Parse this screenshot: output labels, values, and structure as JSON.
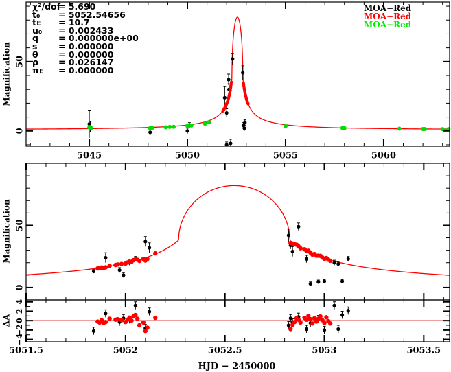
{
  "chart_data": [
    {
      "type": "scatter",
      "panel": "overview",
      "xlabel": "",
      "ylabel": "Magnification",
      "xlim": [
        5041.78,
        5063.36
      ],
      "ylim": [
        -11,
        93
      ],
      "xticks": [
        5045,
        5050,
        5055,
        5060
      ],
      "xtick_labels": [
        "5045",
        "5050",
        "5055",
        "5060"
      ],
      "yticks": [
        0,
        50
      ],
      "ytick_labels": [
        "0",
        "50"
      ],
      "model": {
        "t0": 5052.54656,
        "tE": 10.7,
        "u0": 0.002433,
        "rho": 0.026147,
        "color": "#ff0000"
      },
      "green_points": [
        [
          5045.0,
          2.5,
          1.5
        ],
        [
          5045.1,
          1.8,
          1.2
        ],
        [
          5048.1,
          2.0,
          0.8
        ],
        [
          5048.2,
          2.2,
          0.8
        ],
        [
          5048.9,
          2.6,
          0.8
        ],
        [
          5049.1,
          2.9,
          0.8
        ],
        [
          5049.3,
          3.0,
          0.8
        ],
        [
          5050.0,
          3.6,
          0.9
        ],
        [
          5050.2,
          3.9,
          0.9
        ],
        [
          5050.9,
          5.2,
          1.0
        ],
        [
          5051.1,
          6.2,
          1.0
        ],
        [
          5055.0,
          3.5,
          0.8
        ],
        [
          5057.9,
          2.1,
          0.8
        ],
        [
          5058.0,
          2.0,
          0.8
        ],
        [
          5060.8,
          1.6,
          0.8
        ],
        [
          5062.0,
          1.4,
          0.8
        ],
        [
          5062.1,
          1.4,
          0.8
        ],
        [
          5063.0,
          1.3,
          0.8
        ],
        [
          5063.3,
          1.3,
          0.8
        ]
      ],
      "black_points": [
        [
          5045.0,
          5,
          10
        ],
        [
          5045.05,
          3,
          4
        ],
        [
          5048.1,
          -1,
          2
        ],
        [
          5050.0,
          0,
          2
        ],
        [
          5050.1,
          4,
          2
        ],
        [
          5051.9,
          24,
          8
        ],
        [
          5052.0,
          13,
          3
        ],
        [
          5052.1,
          37,
          4
        ],
        [
          5052.12,
          30,
          4
        ],
        [
          5052.3,
          52,
          4
        ],
        [
          5052.82,
          42,
          5
        ],
        [
          5052.85,
          4,
          2
        ],
        [
          5052.9,
          2,
          2
        ],
        [
          5052.93,
          6,
          2
        ],
        [
          5052.0,
          -10,
          2
        ],
        [
          5052.2,
          -9,
          3
        ]
      ],
      "legend": [
        {
          "label": "MOA−Red",
          "color": "#000000"
        },
        {
          "label": "MOA−Red",
          "color": "#ff0000"
        },
        {
          "label": "MOA−Red",
          "color": "#00ee00"
        }
      ],
      "legend_position": "top-right",
      "params": [
        {
          "sym": "χ²/dof",
          "value": "= 5.690"
        },
        {
          "sym": "t₀",
          "value": "= 5052.54656"
        },
        {
          "sym": "tᴇ",
          "value": "= 10.7"
        },
        {
          "sym": "u₀",
          "value": "= 0.002433"
        },
        {
          "sym": "q",
          "value": "= 0.000000e+00"
        },
        {
          "sym": "s",
          "value": "= 0.000000"
        },
        {
          "sym": "θ",
          "value": "= 0.000000"
        },
        {
          "sym": "ρ",
          "value": "= 0.026147"
        },
        {
          "sym": "πᴇ",
          "value": "= 0.000000"
        }
      ]
    },
    {
      "type": "scatter",
      "panel": "zoom",
      "xlabel": "HJD − 2450000",
      "ylabel": "Magnification",
      "residual_ylabel": "ΔA",
      "xlim": [
        5051.5,
        5053.63
      ],
      "ylim": [
        -10,
        100
      ],
      "residual_ylim": [
        -4.5,
        4.4
      ],
      "xticks": [
        5051.5,
        5052,
        5052.5,
        5053,
        5053.5
      ],
      "xtick_labels": [
        "5051.5",
        "5052",
        "5052.5",
        "5053",
        "5053.5"
      ],
      "yticks": [
        0,
        50
      ],
      "ytick_labels": [
        "0",
        "50"
      ],
      "residual_yticks": [
        -4,
        -2,
        0,
        2,
        4
      ],
      "residual_ytick_labels": [
        "−4",
        "−2",
        "0",
        "2",
        "4"
      ],
      "red_residuals": [
        [
          5051.86,
          -0.2
        ],
        [
          5051.87,
          -0.4
        ],
        [
          5051.88,
          0.1
        ],
        [
          5051.89,
          -0.5
        ],
        [
          5051.9,
          -0.3
        ],
        [
          5051.92,
          0.4
        ],
        [
          5051.95,
          0.2
        ],
        [
          5051.96,
          0.3
        ],
        [
          5051.98,
          0.1
        ],
        [
          5052.0,
          -0.3
        ],
        [
          5052.01,
          0.2
        ],
        [
          5052.02,
          0.6
        ],
        [
          5052.03,
          0.0
        ],
        [
          5052.04,
          0.9
        ],
        [
          5052.05,
          1.2
        ],
        [
          5052.06,
          0.4
        ],
        [
          5052.07,
          -1.0
        ],
        [
          5052.09,
          -0.4
        ],
        [
          5052.1,
          -2.2
        ],
        [
          5052.11,
          -1.5
        ],
        [
          5052.15,
          0.6
        ],
        [
          5052.83,
          -1.8
        ],
        [
          5052.84,
          -0.9
        ],
        [
          5052.85,
          -0.3
        ],
        [
          5052.86,
          0.5
        ],
        [
          5052.87,
          0.2
        ],
        [
          5052.88,
          -0.4
        ],
        [
          5052.9,
          0.6
        ],
        [
          5052.91,
          0.2
        ],
        [
          5052.92,
          1.0
        ],
        [
          5052.93,
          0.3
        ],
        [
          5052.94,
          -0.6
        ],
        [
          5052.95,
          0.5
        ],
        [
          5052.96,
          -0.2
        ],
        [
          5052.97,
          0.4
        ],
        [
          5052.98,
          0.9
        ],
        [
          5052.99,
          0.1
        ],
        [
          5053.0,
          -0.5
        ],
        [
          5053.01,
          0.7
        ],
        [
          5053.02,
          -0.1
        ],
        [
          5053.03,
          -0.6
        ]
      ],
      "black_points": [
        [
          5051.84,
          13,
          1.5,
          -2.2
        ],
        [
          5051.9,
          24,
          4,
          1.5
        ],
        [
          5051.97,
          14,
          2,
          -0.3
        ],
        [
          5051.99,
          10,
          2,
          0.5
        ],
        [
          5052.02,
          20,
          2,
          0.2
        ],
        [
          5052.05,
          23,
          2,
          3.2
        ],
        [
          5052.1,
          37,
          4,
          -1.6
        ],
        [
          5052.12,
          32,
          4,
          1.9
        ],
        [
          5052.82,
          42,
          5,
          -1.0
        ],
        [
          5052.83,
          34,
          3,
          0.5
        ],
        [
          5052.84,
          29,
          4,
          -0.4
        ],
        [
          5052.87,
          49,
          3,
          0.8
        ],
        [
          5052.91,
          23,
          3,
          -1.8
        ],
        [
          5052.93,
          3,
          1.5,
          -0.5
        ],
        [
          5052.97,
          4.5,
          1.5,
          0.3
        ],
        [
          5053.0,
          5,
          1.5,
          -2.0
        ],
        [
          5053.05,
          20,
          2,
          3.2
        ],
        [
          5053.07,
          19,
          2,
          -1.8
        ],
        [
          5053.09,
          5,
          1.5,
          1.2
        ],
        [
          5053.12,
          23,
          2,
          2.1
        ]
      ]
    }
  ]
}
